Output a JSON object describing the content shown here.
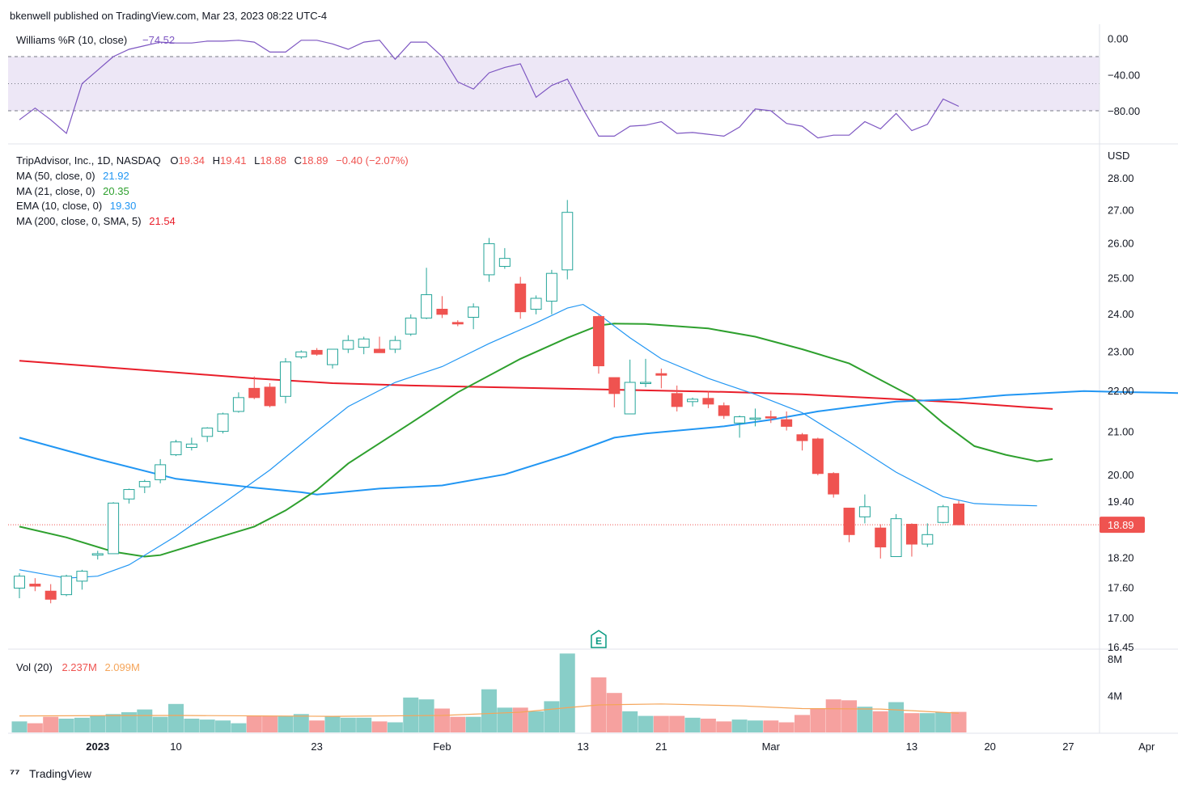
{
  "header": {
    "publisher_line": "bkenwell published on TradingView.com, Mar 23, 2023 08:22 UTC-4"
  },
  "footer": {
    "brand": "TradingView"
  },
  "colors": {
    "up": "#26a69a",
    "down": "#ef5350",
    "williams": "#7e57c2",
    "wr_band": "#ede7f6",
    "ma50": "#2196f3",
    "ma21": "#2ea02e",
    "ema10": "#2196f3",
    "ma200": "#e91e2a",
    "vol_ma": "#f5a55a",
    "last_price_bg": "#ef5350"
  },
  "chart_data": {
    "type": "candlestick",
    "symbol_line": "TripAdvisor, Inc., 1D, NASDAQ",
    "ohlc_label": {
      "o_label": "O",
      "o": "19.34",
      "h_label": "H",
      "h": "19.41",
      "l_label": "L",
      "l": "18.88",
      "c_label": "C",
      "c": "18.89",
      "change": "−0.40 (−2.07%)"
    },
    "indicator_labels": [
      {
        "name": "MA (50, close, 0)",
        "value": "21.92",
        "color": "#2196f3"
      },
      {
        "name": "MA (21, close, 0)",
        "value": "20.35",
        "color": "#2ea02e"
      },
      {
        "name": "EMA (10, close, 0)",
        "value": "19.30",
        "color": "#2196f3"
      },
      {
        "name": "MA (200, close, 0, SMA, 5)",
        "value": "21.54",
        "color": "#e91e2a"
      }
    ],
    "currency": "USD",
    "price_ticks": [
      "28.00",
      "27.00",
      "26.00",
      "25.00",
      "24.00",
      "23.00",
      "22.00",
      "21.00",
      "20.00",
      "19.40",
      "18.20",
      "17.60",
      "17.00",
      "16.45"
    ],
    "price_ylim": [
      16.45,
      28.2
    ],
    "last_price": "18.89",
    "x_ticks": [
      {
        "i": 5,
        "label": "2023",
        "bold": true
      },
      {
        "i": 10,
        "label": "10"
      },
      {
        "i": 19,
        "label": "23"
      },
      {
        "i": 27,
        "label": "Feb"
      },
      {
        "i": 36,
        "label": "13"
      },
      {
        "i": 41,
        "label": "21"
      },
      {
        "i": 48,
        "label": "Mar"
      },
      {
        "i": 57,
        "label": "13"
      },
      {
        "i": 62,
        "label": "20"
      },
      {
        "i": 67,
        "label": "27"
      },
      {
        "i": 72,
        "label": "Apr"
      }
    ],
    "earnings_marker": {
      "i": 37,
      "label": "E"
    },
    "candles": [
      {
        "o": 17.58,
        "h": 17.88,
        "l": 17.38,
        "c": 17.82
      },
      {
        "o": 17.66,
        "h": 17.78,
        "l": 17.52,
        "c": 17.62
      },
      {
        "o": 17.52,
        "h": 17.66,
        "l": 17.28,
        "c": 17.36
      },
      {
        "o": 17.45,
        "h": 17.85,
        "l": 17.42,
        "c": 17.82
      },
      {
        "o": 17.72,
        "h": 17.95,
        "l": 17.55,
        "c": 17.92
      },
      {
        "o": 18.25,
        "h": 18.34,
        "l": 18.16,
        "c": 18.28
      },
      {
        "o": 18.28,
        "h": 19.38,
        "l": 18.28,
        "c": 19.36
      },
      {
        "o": 19.45,
        "h": 19.68,
        "l": 19.35,
        "c": 19.66
      },
      {
        "o": 19.72,
        "h": 19.88,
        "l": 19.58,
        "c": 19.84
      },
      {
        "o": 19.88,
        "h": 20.35,
        "l": 19.8,
        "c": 20.22
      },
      {
        "o": 20.45,
        "h": 20.8,
        "l": 20.42,
        "c": 20.75
      },
      {
        "o": 20.62,
        "h": 20.85,
        "l": 20.55,
        "c": 20.7
      },
      {
        "o": 20.88,
        "h": 21.1,
        "l": 20.75,
        "c": 21.08
      },
      {
        "o": 21.0,
        "h": 21.45,
        "l": 20.95,
        "c": 21.42
      },
      {
        "o": 21.48,
        "h": 21.95,
        "l": 21.45,
        "c": 21.82
      },
      {
        "o": 22.05,
        "h": 22.35,
        "l": 21.78,
        "c": 21.82
      },
      {
        "o": 22.08,
        "h": 22.18,
        "l": 21.58,
        "c": 21.62
      },
      {
        "o": 21.85,
        "h": 22.82,
        "l": 21.68,
        "c": 22.72
      },
      {
        "o": 22.85,
        "h": 23.02,
        "l": 22.8,
        "c": 22.98
      },
      {
        "o": 23.02,
        "h": 23.08,
        "l": 22.88,
        "c": 22.92
      },
      {
        "o": 22.65,
        "h": 23.06,
        "l": 22.55,
        "c": 23.05
      },
      {
        "o": 23.05,
        "h": 23.42,
        "l": 22.95,
        "c": 23.28
      },
      {
        "o": 23.1,
        "h": 23.38,
        "l": 22.92,
        "c": 23.32
      },
      {
        "o": 23.05,
        "h": 23.38,
        "l": 22.98,
        "c": 22.96
      },
      {
        "o": 23.05,
        "h": 23.4,
        "l": 22.95,
        "c": 23.28
      },
      {
        "o": 23.45,
        "h": 23.98,
        "l": 23.4,
        "c": 23.88
      },
      {
        "o": 23.88,
        "h": 25.28,
        "l": 23.85,
        "c": 24.52
      },
      {
        "o": 24.12,
        "h": 24.48,
        "l": 23.88,
        "c": 23.98
      },
      {
        "o": 23.76,
        "h": 23.82,
        "l": 23.66,
        "c": 23.72
      },
      {
        "o": 23.9,
        "h": 24.28,
        "l": 23.58,
        "c": 24.18
      },
      {
        "o": 25.08,
        "h": 26.15,
        "l": 24.88,
        "c": 25.98
      },
      {
        "o": 25.32,
        "h": 25.85,
        "l": 25.25,
        "c": 25.55
      },
      {
        "o": 24.82,
        "h": 25.02,
        "l": 23.86,
        "c": 24.05
      },
      {
        "o": 24.12,
        "h": 24.5,
        "l": 23.98,
        "c": 24.42
      },
      {
        "o": 24.34,
        "h": 25.22,
        "l": 23.98,
        "c": 25.12
      },
      {
        "o": 25.22,
        "h": 27.3,
        "l": 24.95,
        "c": 26.92
      },
      {
        "o": 23.92,
        "h": 23.96,
        "l": 22.42,
        "c": 22.62
      },
      {
        "o": 22.32,
        "h": 22.32,
        "l": 21.58,
        "c": 21.92
      },
      {
        "o": 21.42,
        "h": 22.78,
        "l": 21.42,
        "c": 22.2
      },
      {
        "o": 22.18,
        "h": 22.8,
        "l": 22.08,
        "c": 22.2
      },
      {
        "o": 22.42,
        "h": 22.55,
        "l": 22.05,
        "c": 22.38
      },
      {
        "o": 21.92,
        "h": 22.12,
        "l": 21.48,
        "c": 21.6
      },
      {
        "o": 21.72,
        "h": 21.82,
        "l": 21.6,
        "c": 21.78
      },
      {
        "o": 21.8,
        "h": 21.98,
        "l": 21.56,
        "c": 21.66
      },
      {
        "o": 21.62,
        "h": 21.7,
        "l": 21.3,
        "c": 21.38
      },
      {
        "o": 21.2,
        "h": 21.38,
        "l": 20.85,
        "c": 21.35
      },
      {
        "o": 21.32,
        "h": 21.55,
        "l": 21.12,
        "c": 21.32
      },
      {
        "o": 21.35,
        "h": 21.5,
        "l": 21.2,
        "c": 21.32
      },
      {
        "o": 21.28,
        "h": 21.48,
        "l": 21.02,
        "c": 21.12
      },
      {
        "o": 20.92,
        "h": 20.96,
        "l": 20.55,
        "c": 20.78
      },
      {
        "o": 20.82,
        "h": 20.85,
        "l": 19.98,
        "c": 20.02
      },
      {
        "o": 20.02,
        "h": 20.05,
        "l": 19.48,
        "c": 19.56
      },
      {
        "o": 19.25,
        "h": 19.25,
        "l": 18.52,
        "c": 18.68
      },
      {
        "o": 19.06,
        "h": 19.55,
        "l": 18.92,
        "c": 19.28
      },
      {
        "o": 18.82,
        "h": 18.9,
        "l": 18.18,
        "c": 18.42
      },
      {
        "o": 18.22,
        "h": 19.12,
        "l": 18.22,
        "c": 19.02
      },
      {
        "o": 18.9,
        "h": 18.92,
        "l": 18.22,
        "c": 18.48
      },
      {
        "o": 18.48,
        "h": 18.92,
        "l": 18.42,
        "c": 18.68
      },
      {
        "o": 18.94,
        "h": 19.32,
        "l": 18.92,
        "c": 19.28
      },
      {
        "o": 19.34,
        "h": 19.41,
        "l": 18.88,
        "c": 18.89
      }
    ],
    "candle_x_index": [
      0,
      1,
      2,
      3,
      4,
      5,
      6,
      7,
      8,
      9,
      10,
      11,
      12,
      13,
      14,
      15,
      16,
      17,
      18,
      19,
      20,
      21,
      22,
      23,
      24,
      25,
      26,
      27,
      28,
      29,
      30,
      31,
      32,
      33,
      34,
      35,
      37,
      38,
      39,
      40,
      41,
      42,
      43,
      44,
      45,
      46,
      47,
      48,
      49,
      50,
      51,
      52,
      53,
      54,
      55,
      56,
      57,
      58,
      59,
      60
    ],
    "ma50": [
      [
        0,
        20.85
      ],
      [
        5,
        20.35
      ],
      [
        10,
        19.9
      ],
      [
        15,
        19.7
      ],
      [
        18,
        19.6
      ],
      [
        19,
        19.55
      ],
      [
        23,
        19.68
      ],
      [
        27,
        19.75
      ],
      [
        31,
        20.0
      ],
      [
        35,
        20.45
      ],
      [
        38,
        20.85
      ],
      [
        40,
        20.95
      ],
      [
        45,
        21.12
      ],
      [
        48,
        21.28
      ],
      [
        51,
        21.48
      ],
      [
        53,
        21.58
      ],
      [
        56,
        21.72
      ],
      [
        60,
        21.78
      ],
      [
        63,
        21.88
      ],
      [
        68,
        21.98
      ],
      [
        70,
        21.96
      ],
      [
        73,
        21.94
      ],
      [
        75,
        21.92
      ]
    ],
    "ma21": [
      [
        0,
        18.85
      ],
      [
        3,
        18.62
      ],
      [
        6,
        18.32
      ],
      [
        8,
        18.22
      ],
      [
        9,
        18.25
      ],
      [
        12,
        18.55
      ],
      [
        15,
        18.85
      ],
      [
        17,
        19.2
      ],
      [
        19,
        19.65
      ],
      [
        21,
        20.25
      ],
      [
        25,
        21.2
      ],
      [
        28,
        21.95
      ],
      [
        32,
        22.8
      ],
      [
        35,
        23.35
      ],
      [
        37,
        23.68
      ],
      [
        38,
        23.73
      ],
      [
        40,
        23.72
      ],
      [
        44,
        23.6
      ],
      [
        47,
        23.38
      ],
      [
        50,
        23.05
      ],
      [
        53,
        22.68
      ],
      [
        57,
        21.85
      ],
      [
        59,
        21.2
      ],
      [
        61,
        20.65
      ],
      [
        63,
        20.45
      ],
      [
        65,
        20.3
      ],
      [
        66,
        20.35
      ]
    ],
    "ema10": [
      [
        0,
        17.95
      ],
      [
        3,
        17.78
      ],
      [
        5,
        17.82
      ],
      [
        7,
        18.05
      ],
      [
        10,
        18.65
      ],
      [
        13,
        19.35
      ],
      [
        16,
        20.1
      ],
      [
        19,
        21.0
      ],
      [
        21,
        21.6
      ],
      [
        24,
        22.2
      ],
      [
        27,
        22.6
      ],
      [
        30,
        23.2
      ],
      [
        33,
        23.75
      ],
      [
        35,
        24.15
      ],
      [
        36,
        24.25
      ],
      [
        37,
        23.98
      ],
      [
        39,
        23.35
      ],
      [
        41,
        22.8
      ],
      [
        44,
        22.3
      ],
      [
        47,
        21.9
      ],
      [
        50,
        21.45
      ],
      [
        53,
        20.75
      ],
      [
        56,
        20.05
      ],
      [
        59,
        19.5
      ],
      [
        61,
        19.35
      ],
      [
        63,
        19.32
      ],
      [
        65,
        19.3
      ]
    ],
    "ma200": [
      [
        0,
        22.75
      ],
      [
        5,
        22.6
      ],
      [
        10,
        22.45
      ],
      [
        15,
        22.3
      ],
      [
        20,
        22.18
      ],
      [
        25,
        22.12
      ],
      [
        30,
        22.08
      ],
      [
        35,
        22.04
      ],
      [
        40,
        22.0
      ],
      [
        45,
        21.96
      ],
      [
        50,
        21.9
      ],
      [
        55,
        21.8
      ],
      [
        60,
        21.7
      ],
      [
        63,
        21.62
      ],
      [
        66,
        21.54
      ]
    ],
    "williams_r": {
      "label": "Williams %R (10, close)",
      "value": "−74.52",
      "ticks": [
        "0.00",
        "−40.00",
        "−80.00"
      ],
      "ylim": [
        -105,
        5
      ],
      "band": [
        -80,
        -20
      ],
      "mid": -50,
      "points": [
        [
          0,
          -90
        ],
        [
          1,
          -77
        ],
        [
          2,
          -90
        ],
        [
          3,
          -105
        ],
        [
          4,
          -50
        ],
        [
          5,
          -35
        ],
        [
          6,
          -20
        ],
        [
          7,
          -12
        ],
        [
          8,
          -8
        ],
        [
          9,
          -4
        ],
        [
          10,
          -5
        ],
        [
          11,
          -5
        ],
        [
          12,
          -3
        ],
        [
          13,
          -3
        ],
        [
          14,
          -2
        ],
        [
          15,
          -4
        ],
        [
          16,
          -15
        ],
        [
          17,
          -15
        ],
        [
          18,
          -2
        ],
        [
          19,
          -2
        ],
        [
          20,
          -6
        ],
        [
          21,
          -12
        ],
        [
          22,
          -4
        ],
        [
          23,
          -2
        ],
        [
          24,
          -23
        ],
        [
          25,
          -4
        ],
        [
          26,
          -4
        ],
        [
          27,
          -20
        ],
        [
          28,
          -48
        ],
        [
          29,
          -56
        ],
        [
          30,
          -38
        ],
        [
          31,
          -32
        ],
        [
          32,
          -28
        ],
        [
          33,
          -65
        ],
        [
          34,
          -52
        ],
        [
          35,
          -45
        ],
        [
          36,
          -78
        ],
        [
          37,
          -108
        ],
        [
          38,
          -108
        ],
        [
          39,
          -97
        ],
        [
          40,
          -96
        ],
        [
          41,
          -92
        ],
        [
          42,
          -105
        ],
        [
          43,
          -104
        ],
        [
          44,
          -106
        ],
        [
          45,
          -108
        ],
        [
          46,
          -98
        ],
        [
          47,
          -78
        ],
        [
          48,
          -80
        ],
        [
          49,
          -94
        ],
        [
          50,
          -97
        ],
        [
          51,
          -110
        ],
        [
          52,
          -107
        ],
        [
          53,
          -107
        ],
        [
          54,
          -92
        ],
        [
          55,
          -100
        ],
        [
          56,
          -83
        ],
        [
          57,
          -102
        ],
        [
          58,
          -95
        ],
        [
          59,
          -67
        ],
        [
          60,
          -75
        ]
      ]
    },
    "volume": {
      "label": "Vol (20)",
      "value": "2.237M",
      "ma_value": "2.099M",
      "ticks": [
        "8M",
        "4M"
      ],
      "ylim": [
        0,
        9.0
      ],
      "values": [
        1.2,
        1.0,
        1.7,
        1.5,
        1.6,
        1.8,
        2.0,
        2.2,
        2.5,
        1.7,
        3.1,
        1.5,
        1.4,
        1.3,
        1.0,
        1.8,
        1.8,
        1.8,
        2.0,
        1.3,
        1.8,
        1.6,
        1.6,
        1.2,
        1.1,
        3.8,
        3.6,
        2.6,
        1.7,
        1.7,
        4.7,
        2.7,
        2.7,
        2.3,
        3.4,
        8.6,
        6.0,
        4.3,
        2.3,
        1.8,
        1.8,
        1.8,
        1.6,
        1.5,
        1.2,
        1.4,
        1.3,
        1.3,
        1.1,
        1.9,
        2.6,
        3.6,
        3.5,
        2.8,
        2.3,
        3.3,
        2.1,
        2.1,
        2.2,
        2.237
      ],
      "ma": [
        [
          0,
          1.8
        ],
        [
          10,
          1.85
        ],
        [
          20,
          1.75
        ],
        [
          27,
          1.85
        ],
        [
          32,
          2.2
        ],
        [
          35,
          2.7
        ],
        [
          37,
          3.0
        ],
        [
          41,
          3.1
        ],
        [
          46,
          2.9
        ],
        [
          50,
          2.6
        ],
        [
          55,
          2.55
        ],
        [
          60,
          2.1
        ]
      ]
    }
  }
}
